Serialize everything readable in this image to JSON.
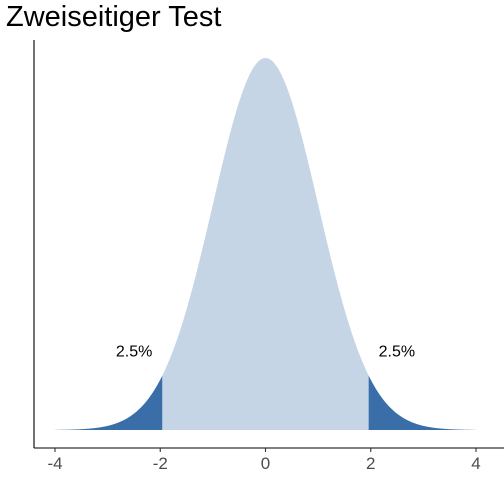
{
  "chart_data": {
    "type": "area",
    "title": "Zweiseitiger Test",
    "xlabel": "",
    "ylabel": "",
    "xlim": [
      -4,
      4
    ],
    "distribution": "standard-normal",
    "x_ticks": [
      -4,
      -2,
      0,
      2,
      4
    ],
    "x_tick_labels": [
      "-4",
      "-2",
      "0",
      "2",
      "4"
    ],
    "critical_values": [
      -1.96,
      1.96
    ],
    "regions": [
      {
        "name": "",
        "from": -4,
        "to": -1.96,
        "role": "left-tail",
        "color": "#3a6ea8"
      },
      {
        "name": "",
        "from": -1.96,
        "to": 1.96,
        "role": "center",
        "color": "#c6d5e5"
      },
      {
        "name": "",
        "from": 1.96,
        "to": 4,
        "role": "right-tail",
        "color": "#3a6ea8"
      }
    ],
    "annotations": [
      {
        "text": "2.5%",
        "x": -2.15,
        "y": 0.085,
        "anchor": "end"
      },
      {
        "text": "2.5%",
        "x": 2.15,
        "y": 0.085,
        "anchor": "start"
      }
    ],
    "grid": false,
    "legend": "none"
  }
}
